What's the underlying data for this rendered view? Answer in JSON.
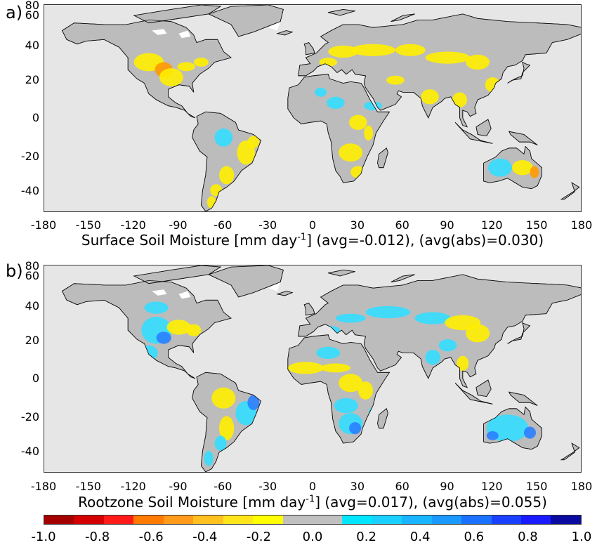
{
  "panels": [
    {
      "label": "a)",
      "caption_pre": "Surface Soil Moisture [mm day",
      "caption_sup": "-1",
      "caption_post": "] (avg=-0.012), (avg(abs)=0.030)"
    },
    {
      "label": "b)",
      "caption_pre": "Rootzone Soil Moisture [mm day",
      "caption_sup": "-1",
      "caption_post": "] (avg=0.017), (avg(abs)=0.055)"
    }
  ],
  "axes": {
    "x_ticks": [
      "-180",
      "-150",
      "-120",
      "-90",
      "-60",
      "-30",
      "0",
      "30",
      "60",
      "90",
      "120",
      "150",
      "180"
    ],
    "y_ticks": [
      "80",
      "60",
      "40",
      "20",
      "0",
      "-20",
      "-40"
    ]
  },
  "colorbar": {
    "ticks": [
      "-1.0",
      "-0.8",
      "-0.6",
      "-0.4",
      "-0.2",
      "0.0",
      "0.2",
      "0.4",
      "0.6",
      "0.8",
      "1.0"
    ],
    "colors": [
      "#a50000",
      "#d40000",
      "#ff1a1a",
      "#ff7a00",
      "#ff9a1a",
      "#ffc020",
      "#ffe61a",
      "#ffff00",
      "#c0c0c0",
      "#c0c0c0",
      "#00e6ff",
      "#1ad0ff",
      "#19b5ff",
      "#1a9aff",
      "#1a70ff",
      "#1a40ff",
      "#1a1aff",
      "#0a0aa0"
    ]
  },
  "colors": {
    "ocean": "#e6e6e6",
    "land": "#bcbcbc",
    "ice": "#ffffff",
    "dry": "#ffee00",
    "very_dry": "#ff9900",
    "wet": "#33ddff",
    "very_wet": "#2a7fff"
  }
}
